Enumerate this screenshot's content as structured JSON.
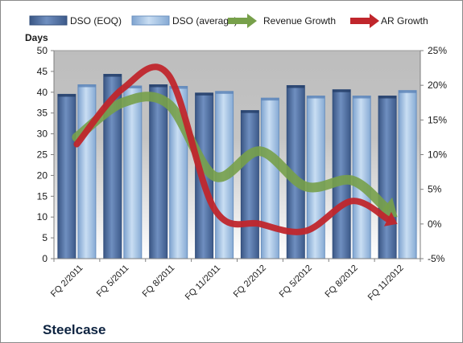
{
  "company_label": "Steelcase",
  "chart_data": {
    "type": "bar",
    "title": "",
    "xlabel": "",
    "ylabel": "Days",
    "y2label": "",
    "categories": [
      "FQ 2/2011",
      "FQ 5/2011",
      "FQ 8/2011",
      "FQ 11/2011",
      "FQ 2/2012",
      "FQ 5/2012",
      "FQ 8/2012",
      "FQ 11/2012"
    ],
    "ylim": [
      0,
      50
    ],
    "yticks": [
      "0",
      "5",
      "10",
      "15",
      "20",
      "25",
      "30",
      "35",
      "40",
      "45",
      "50"
    ],
    "y2lim": [
      -5,
      25
    ],
    "y2ticks": [
      "-5%",
      "0%",
      "5%",
      "10%",
      "15%",
      "20%",
      "25%"
    ],
    "grid": false,
    "legend_position": "top",
    "series": [
      {
        "name": "DSO (EOQ)",
        "kind": "bar",
        "color": "#4f6fa3",
        "values": [
          39.5,
          44.3,
          41.8,
          39.8,
          35.6,
          41.6,
          40.6,
          39.1
        ]
      },
      {
        "name": "DSO (average)",
        "kind": "bar",
        "color": "#a9c6e6",
        "values": [
          41.8,
          41.5,
          41.4,
          40.2,
          38.6,
          39.1,
          39.1,
          40.4
        ]
      },
      {
        "name": "Revenue Growth",
        "kind": "arrow",
        "axis": "secondary",
        "color": "#77a04a",
        "values": [
          12.5,
          17.5,
          17.3,
          6.9,
          10.5,
          5.4,
          6.3,
          1.0
        ]
      },
      {
        "name": "AR Growth",
        "kind": "arrow",
        "axis": "secondary",
        "color": "#c0262c",
        "values": [
          11.5,
          19.5,
          21.5,
          2.2,
          0.0,
          -1.0,
          3.3,
          0.0
        ]
      }
    ]
  }
}
